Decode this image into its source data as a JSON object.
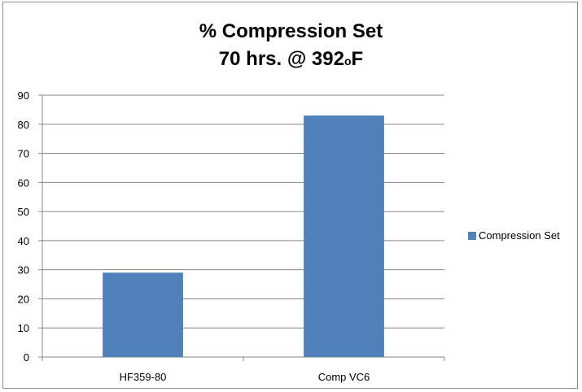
{
  "chart_data": {
    "type": "bar",
    "title_line1": "% Compression Set",
    "title_line2_main": "70 hrs. @ 392",
    "title_line2_sup": "o",
    "title_line2_end": "F",
    "categories": [
      "HF359-80",
      "Comp VC6"
    ],
    "series": [
      {
        "name": "Compression Set",
        "values": [
          29,
          83
        ],
        "color": "#4f81bd"
      }
    ],
    "ylim": [
      0,
      90
    ],
    "yticks": [
      0,
      10,
      20,
      30,
      40,
      50,
      60,
      70,
      80,
      90
    ],
    "grid": true,
    "legend_position": "right"
  }
}
